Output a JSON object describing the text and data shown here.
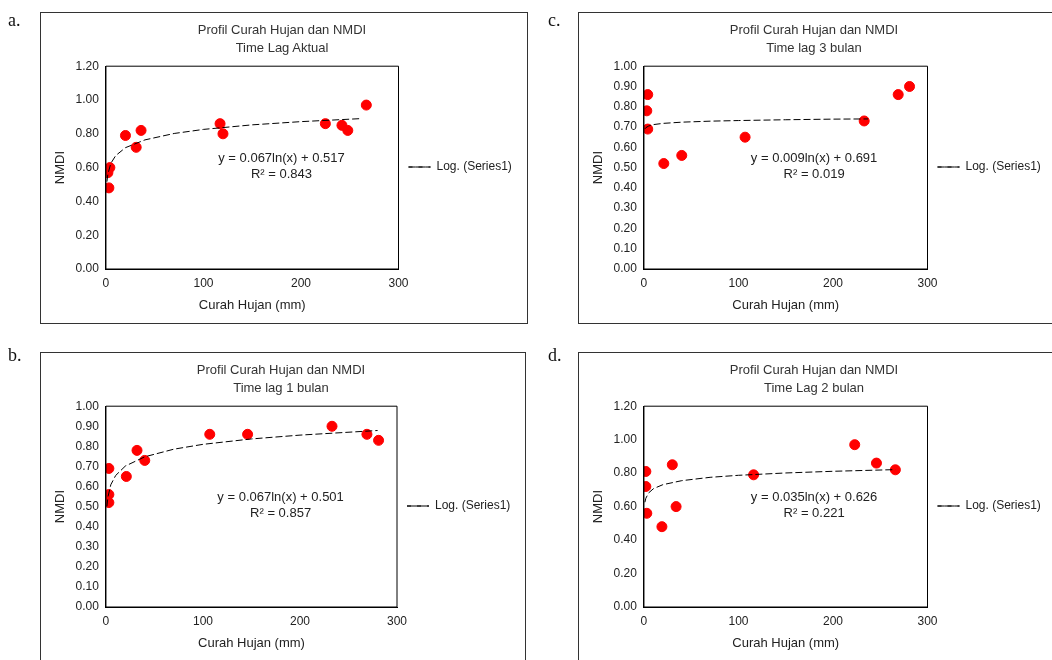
{
  "chart_data": [
    {
      "type": "scatter",
      "title": "Profil Curah Hujan dan NMDI",
      "subtitle": "Time Lag Aktual",
      "xlabel": "Curah Hujan (mm)",
      "ylabel": "NMDI",
      "annotations": [
        "a.",
        "y = 0.067ln(x) + 0.517",
        "R² = 0.843"
      ],
      "xlim": [
        0,
        300
      ],
      "xticks": [
        0,
        100,
        200,
        300
      ],
      "ylim": [
        0,
        1.2
      ],
      "yticks": [
        {
          "value": 0,
          "label": "0.00"
        },
        {
          "value": 0.2,
          "label": "0.20"
        },
        {
          "value": 0.4,
          "label": "0.40"
        },
        {
          "value": 0.6,
          "label": "0.60"
        },
        {
          "value": 0.8,
          "label": "0.80"
        },
        {
          "value": 1,
          "label": "1.00"
        },
        {
          "value": 1.2,
          "label": "1.20"
        }
      ],
      "grid": false,
      "legend": "right",
      "marker": "circle",
      "series": [
        {
          "color": "#ff0000",
          "x": [
            3,
            2,
            4,
            20,
            31,
            36,
            117,
            120,
            225,
            242,
            248,
            267
          ],
          "values": [
            0.48,
            0.57,
            0.6,
            0.79,
            0.72,
            0.82,
            0.86,
            0.8,
            0.86,
            0.85,
            0.82,
            0.97
          ]
        },
        {
          "type": "line",
          "name": "Log. (Series1)",
          "color": "#000000",
          "line_style": "dashed",
          "marker": "none",
          "x": [
            1,
            2,
            5,
            10,
            20,
            40,
            70,
            100,
            150,
            200,
            262
          ],
          "values": [
            0.517,
            0.563,
            0.625,
            0.671,
            0.718,
            0.764,
            0.802,
            0.826,
            0.853,
            0.872,
            0.89
          ]
        }
      ]
    },
    {
      "type": "scatter",
      "title": "Profil Curah Hujan dan NMDI",
      "subtitle": "Time lag 3 bulan",
      "xlabel": "Curah Hujan (mm)",
      "ylabel": "NMDI",
      "annotations": [
        "c.",
        "y = 0.009ln(x) + 0.691",
        "R² = 0.019"
      ],
      "xlim": [
        0,
        300
      ],
      "xticks": [
        0,
        100,
        200,
        300
      ],
      "ylim": [
        0,
        1
      ],
      "yticks": [
        {
          "value": 0,
          "label": "0.00"
        },
        {
          "value": 0.1,
          "label": "0.10"
        },
        {
          "value": 0.2,
          "label": "0.20"
        },
        {
          "value": 0.3,
          "label": "0.30"
        },
        {
          "value": 0.4,
          "label": "0.40"
        },
        {
          "value": 0.5,
          "label": "0.50"
        },
        {
          "value": 0.6,
          "label": "0.60"
        },
        {
          "value": 0.7,
          "label": "0.70"
        },
        {
          "value": 0.8,
          "label": "0.80"
        },
        {
          "value": 0.9,
          "label": "0.90"
        },
        {
          "value": 1,
          "label": "1.00"
        }
      ],
      "grid": false,
      "legend": "right",
      "marker": "circle",
      "series": [
        {
          "color": "#ff0000",
          "x": [
            4,
            3,
            4,
            21,
            40,
            107,
            233,
            269,
            281
          ],
          "values": [
            0.86,
            0.78,
            0.69,
            0.52,
            0.56,
            0.65,
            0.73,
            0.86,
            0.9
          ]
        },
        {
          "type": "line",
          "name": "Log. (Series1)",
          "color": "#000000",
          "line_style": "dashed",
          "marker": "none",
          "x": [
            1,
            2,
            5,
            10,
            20,
            40,
            70,
            100,
            150,
            200,
            237
          ],
          "values": [
            0.691,
            0.697,
            0.705,
            0.712,
            0.718,
            0.724,
            0.729,
            0.732,
            0.736,
            0.739,
            0.74
          ]
        }
      ]
    },
    {
      "type": "scatter",
      "title": "Profil Curah Hujan dan NMDI",
      "subtitle": "Time lag 1 bulan",
      "xlabel": "Curah Hujan (mm)",
      "ylabel": "NMDI",
      "annotations": [
        "b.",
        "y = 0.067ln(x) + 0.501",
        "R² = 0.857"
      ],
      "xlim": [
        0,
        300
      ],
      "xticks": [
        0,
        100,
        200,
        300
      ],
      "ylim": [
        0,
        1
      ],
      "yticks": [
        {
          "value": 0,
          "label": "0.00"
        },
        {
          "value": 0.1,
          "label": "0.10"
        },
        {
          "value": 0.2,
          "label": "0.20"
        },
        {
          "value": 0.3,
          "label": "0.30"
        },
        {
          "value": 0.4,
          "label": "0.40"
        },
        {
          "value": 0.5,
          "label": "0.50"
        },
        {
          "value": 0.6,
          "label": "0.60"
        },
        {
          "value": 0.7,
          "label": "0.70"
        },
        {
          "value": 0.8,
          "label": "0.80"
        },
        {
          "value": 0.9,
          "label": "0.90"
        },
        {
          "value": 1,
          "label": "1.00"
        }
      ],
      "grid": false,
      "legend": "right",
      "marker": "circle",
      "series": [
        {
          "color": "#ff0000",
          "x": [
            3,
            3,
            3,
            21,
            32,
            40,
            107,
            146,
            233,
            269,
            281
          ],
          "values": [
            0.69,
            0.56,
            0.52,
            0.65,
            0.78,
            0.73,
            0.86,
            0.86,
            0.9,
            0.86,
            0.83
          ]
        },
        {
          "type": "line",
          "name": "Log. (Series1)",
          "color": "#000000",
          "line_style": "dashed",
          "marker": "none",
          "x": [
            1,
            2,
            5,
            10,
            20,
            40,
            70,
            100,
            150,
            200,
            280
          ],
          "values": [
            0.501,
            0.547,
            0.609,
            0.655,
            0.702,
            0.748,
            0.786,
            0.81,
            0.837,
            0.856,
            0.879
          ]
        }
      ]
    },
    {
      "type": "scatter",
      "title": "Profil Curah Hujan dan NMDI",
      "subtitle": "Time Lag 2 bulan",
      "xlabel": "Curah Hujan (mm)",
      "ylabel": "NMDI",
      "annotations": [
        "d.",
        "y = 0.035ln(x) + 0.626",
        "R² = 0.221"
      ],
      "xlim": [
        0,
        300
      ],
      "xticks": [
        0,
        100,
        200,
        300
      ],
      "ylim": [
        0,
        1.2
      ],
      "yticks": [
        {
          "value": 0,
          "label": "0.00"
        },
        {
          "value": 0.2,
          "label": "0.20"
        },
        {
          "value": 0.4,
          "label": "0.40"
        },
        {
          "value": 0.6,
          "label": "0.60"
        },
        {
          "value": 0.8,
          "label": "0.80"
        },
        {
          "value": 1,
          "label": "1.00"
        },
        {
          "value": 1.2,
          "label": "1.20"
        }
      ],
      "grid": false,
      "legend": "right",
      "marker": "circle",
      "series": [
        {
          "color": "#ff0000",
          "x": [
            2,
            2,
            3,
            19,
            30,
            34,
            116,
            223,
            246,
            266
          ],
          "values": [
            0.81,
            0.72,
            0.56,
            0.48,
            0.85,
            0.6,
            0.79,
            0.97,
            0.86,
            0.82
          ]
        },
        {
          "type": "line",
          "name": "Log. (Series1)",
          "color": "#000000",
          "line_style": "dashed",
          "marker": "none",
          "x": [
            1,
            2,
            5,
            10,
            20,
            40,
            70,
            100,
            150,
            200,
            266
          ],
          "values": [
            0.626,
            0.65,
            0.682,
            0.707,
            0.731,
            0.755,
            0.775,
            0.787,
            0.801,
            0.811,
            0.821
          ]
        }
      ]
    }
  ]
}
